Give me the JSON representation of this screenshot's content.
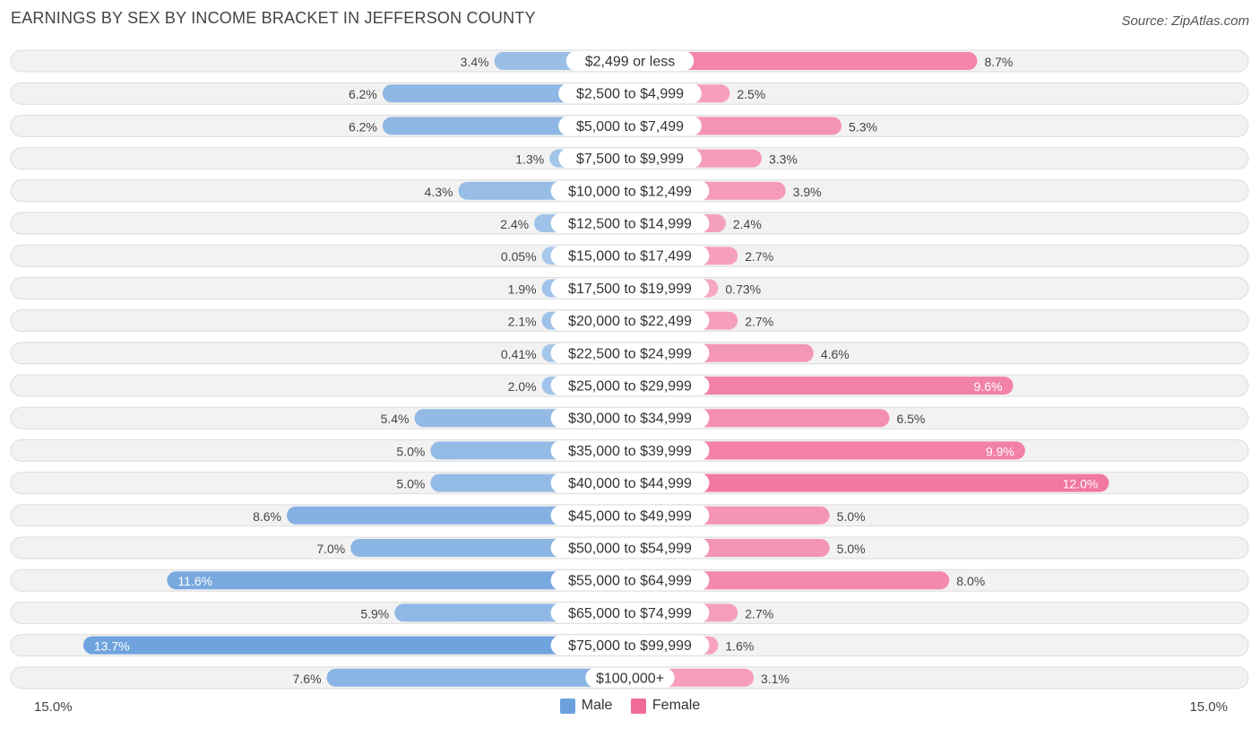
{
  "chart_data": {
    "type": "bar",
    "orientation": "horizontal-diverging",
    "title": "EARNINGS BY SEX BY INCOME BRACKET IN JEFFERSON COUNTY",
    "source": "Source: ZipAtlas.com",
    "axis_max": 15.0,
    "axis_left_label": "15.0%",
    "axis_right_label": "15.0%",
    "categories": [
      "$2,499 or less",
      "$2,500 to $4,999",
      "$5,000 to $7,499",
      "$7,500 to $9,999",
      "$10,000 to $12,499",
      "$12,500 to $14,999",
      "$15,000 to $17,499",
      "$17,500 to $19,999",
      "$20,000 to $22,499",
      "$22,500 to $24,999",
      "$25,000 to $29,999",
      "$30,000 to $34,999",
      "$35,000 to $39,999",
      "$40,000 to $44,999",
      "$45,000 to $49,999",
      "$50,000 to $54,999",
      "$55,000 to $64,999",
      "$65,000 to $74,999",
      "$75,000 to $99,999",
      "$100,000+"
    ],
    "series": [
      {
        "name": "Male",
        "color": "#6aa0dc",
        "values": [
          3.4,
          6.2,
          6.2,
          1.3,
          4.3,
          2.4,
          0.05,
          1.9,
          2.1,
          0.41,
          2.0,
          5.4,
          5.0,
          5.0,
          8.6,
          7.0,
          11.6,
          5.9,
          13.7,
          7.6
        ],
        "labels": [
          "3.4%",
          "6.2%",
          "6.2%",
          "1.3%",
          "4.3%",
          "2.4%",
          "0.05%",
          "1.9%",
          "2.1%",
          "0.41%",
          "2.0%",
          "5.4%",
          "5.0%",
          "5.0%",
          "8.6%",
          "7.0%",
          "11.6%",
          "5.9%",
          "13.7%",
          "7.6%"
        ]
      },
      {
        "name": "Female",
        "color": "#f06c96",
        "values": [
          8.7,
          2.5,
          5.3,
          3.3,
          3.9,
          2.4,
          2.7,
          0.73,
          2.7,
          4.6,
          9.6,
          6.5,
          9.9,
          12.0,
          5.0,
          5.0,
          8.0,
          2.7,
          1.6,
          3.1
        ],
        "labels": [
          "8.7%",
          "2.5%",
          "5.3%",
          "3.3%",
          "3.9%",
          "2.4%",
          "2.7%",
          "0.73%",
          "2.7%",
          "4.6%",
          "9.6%",
          "6.5%",
          "9.9%",
          "12.0%",
          "5.0%",
          "5.0%",
          "8.0%",
          "2.7%",
          "1.6%",
          "3.1%"
        ]
      }
    ],
    "legend": [
      "Male",
      "Female"
    ],
    "legend_position": "bottom-center"
  }
}
